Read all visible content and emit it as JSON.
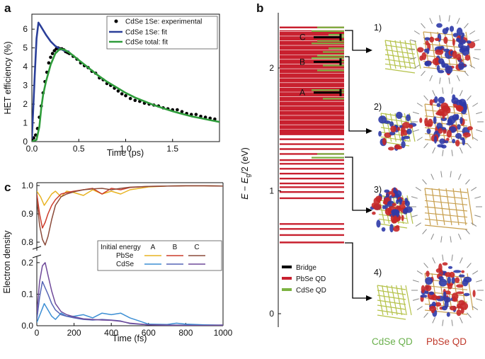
{
  "figure": {
    "panels": [
      {
        "label": "a"
      },
      {
        "label": "b"
      },
      {
        "label": "c"
      }
    ]
  },
  "panel_a": {
    "xlabel": "Time (ps)",
    "ylabel": "HET efficiency (%)",
    "legend": [
      "CdSe 1Se: experimental",
      "CdSe 1Se: fit",
      "CdSe total: fit"
    ]
  },
  "panel_b": {
    "ylabel": "E − Eg/2 (eV)",
    "state_labels": [
      "A",
      "B",
      "C"
    ],
    "legend": [
      "Bridge",
      "PbSe QD",
      "CdSe QD"
    ],
    "structure_labels": [
      "1)",
      "2)",
      "3)",
      "4)"
    ],
    "qd_labels": [
      "CdSe QD",
      "PbSe QD"
    ]
  },
  "panel_c": {
    "xlabel": "Time (fs)",
    "ylabel": "Electron density",
    "legend_title": "Initial energy",
    "legend_cols": [
      "A",
      "B",
      "C"
    ],
    "legend_rows": [
      "PbSe",
      "CdSe"
    ]
  },
  "colors": {
    "blue_fit": "#2b3f99",
    "green_fit": "#2e9c3a",
    "pbse": "#c8202f",
    "cdse_green": "#7cb342",
    "bridge": "#000000",
    "A_pbse": "#e8b322",
    "B_pbse": "#cc3b2a",
    "C_pbse": "#8b4b3a",
    "A_cdse": "#3d8fd4",
    "B_cdse": "#5564b5",
    "C_cdse": "#6f4a9a"
  },
  "chart_data": [
    {
      "type": "line",
      "panel": "a",
      "title": "",
      "xlabel": "Time (ps)",
      "ylabel": "HET efficiency (%)",
      "xlim": [
        0,
        2
      ],
      "ylim": [
        0,
        6.8
      ],
      "xticks": [
        0.0,
        0.5,
        1.0,
        1.5
      ],
      "yticks": [
        0,
        1,
        2,
        3,
        4,
        5,
        6
      ],
      "series": [
        {
          "name": "CdSe 1Se: experimental",
          "style": "scatter",
          "x": [
            0,
            0.02,
            0.04,
            0.06,
            0.08,
            0.1,
            0.12,
            0.14,
            0.16,
            0.18,
            0.2,
            0.22,
            0.24,
            0.26,
            0.28,
            0.3,
            0.32,
            0.34,
            0.36,
            0.38,
            0.4,
            0.44,
            0.48,
            0.52,
            0.56,
            0.6,
            0.64,
            0.68,
            0.72,
            0.76,
            0.8,
            0.84,
            0.88,
            0.92,
            0.96,
            1.0,
            1.05,
            1.1,
            1.15,
            1.2,
            1.25,
            1.3,
            1.35,
            1.4,
            1.45,
            1.5,
            1.55,
            1.6,
            1.65,
            1.7,
            1.75,
            1.8,
            1.85,
            1.9,
            1.95
          ],
          "y": [
            0.12,
            0.2,
            0.35,
            0.7,
            1.3,
            1.9,
            2.6,
            3.2,
            3.7,
            4.2,
            4.5,
            4.7,
            4.85,
            4.95,
            5.0,
            4.95,
            4.95,
            4.9,
            4.8,
            4.75,
            4.7,
            4.55,
            4.4,
            4.2,
            4.05,
            3.95,
            3.75,
            3.65,
            3.4,
            3.3,
            3.1,
            3.0,
            2.85,
            2.7,
            2.55,
            2.45,
            2.3,
            2.2,
            2.15,
            2.05,
            2.0,
            1.95,
            1.9,
            1.8,
            1.75,
            1.7,
            1.7,
            1.6,
            1.5,
            1.45,
            1.45,
            1.35,
            1.3,
            1.25,
            1.2
          ]
        },
        {
          "name": "CdSe 1Se: fit",
          "style": "line",
          "x": [
            0,
            0.01,
            0.03,
            0.05,
            0.07,
            0.09,
            0.12,
            0.15,
            0.2,
            0.25,
            0.3,
            0.35,
            0.4
          ],
          "y": [
            0.15,
            1.2,
            3.5,
            5.5,
            6.35,
            6.2,
            5.95,
            5.7,
            5.35,
            5.1,
            4.95,
            4.85,
            4.8
          ]
        },
        {
          "name": "CdSe total: fit",
          "style": "line",
          "x": [
            0,
            0.05,
            0.08,
            0.1,
            0.12,
            0.15,
            0.2,
            0.25,
            0.3,
            0.35,
            0.4,
            0.5,
            0.6,
            0.7,
            0.8,
            0.9,
            1.0,
            1.1,
            1.2,
            1.3,
            1.4,
            1.5,
            1.6,
            1.7,
            1.8,
            1.9,
            2.0
          ],
          "y": [
            0,
            0.1,
            0.8,
            1.8,
            2.5,
            3.2,
            4.1,
            4.7,
            4.95,
            4.9,
            4.75,
            4.35,
            3.95,
            3.55,
            3.2,
            2.9,
            2.6,
            2.35,
            2.15,
            1.95,
            1.78,
            1.62,
            1.48,
            1.35,
            1.25,
            1.15,
            1.05
          ]
        }
      ]
    },
    {
      "type": "line",
      "panel": "b",
      "title": "",
      "xlabel": "",
      "ylabel": "E − Eg/2 (eV)",
      "ylim": [
        -0.1,
        2.4
      ],
      "yticks": [
        0,
        1,
        2
      ],
      "states_eV": {
        "A": 1.8,
        "B": 2.05,
        "C": 2.25
      },
      "pbse_levels_eV": [
        0.58,
        0.64,
        0.69,
        0.73,
        0.94,
        0.99,
        1.03,
        1.06,
        1.1,
        1.14,
        1.18,
        1.22,
        1.25,
        1.3,
        1.34,
        1.38,
        1.42,
        1.46,
        1.48,
        1.5,
        1.52,
        1.54,
        1.56,
        1.59,
        1.62,
        1.65,
        1.68,
        1.71,
        1.74,
        1.76,
        1.79,
        1.82,
        1.85,
        1.88,
        1.91,
        1.94,
        1.97,
        2.0,
        2.03,
        2.06,
        2.09,
        2.12,
        2.15,
        2.18,
        2.21,
        2.24,
        2.27,
        2.3,
        2.33
      ],
      "cdse_levels_eV": [
        1.27,
        1.3,
        1.75,
        1.8,
        1.82,
        1.98,
        2.02,
        2.05,
        2.08,
        2.1,
        2.13,
        2.16,
        2.2,
        2.22,
        2.25,
        2.27,
        2.3,
        2.33
      ]
    },
    {
      "type": "line",
      "panel": "c",
      "title": "",
      "xlabel": "Time (fs)",
      "ylabel": "Electron density",
      "xlim": [
        0,
        1000
      ],
      "xticks": [
        0,
        200,
        400,
        600,
        800,
        1000
      ],
      "upper_ylim": [
        0.77,
        1.01
      ],
      "upper_yticks": [
        0.8,
        0.9,
        1.0
      ],
      "lower_ylim": [
        0,
        0.22
      ],
      "lower_yticks": [
        0.0,
        0.1,
        0.2
      ],
      "series": [
        {
          "name": "PbSe A",
          "axis": "upper",
          "x": [
            0,
            20,
            40,
            60,
            80,
            100,
            130,
            160,
            200,
            250,
            300,
            350,
            400,
            450,
            500,
            550,
            600,
            700,
            800,
            900,
            1000
          ],
          "y": [
            0.98,
            0.96,
            0.93,
            0.95,
            0.97,
            0.98,
            0.96,
            0.98,
            0.975,
            0.965,
            0.985,
            0.97,
            0.98,
            0.97,
            0.985,
            0.99,
            0.995,
            0.998,
            0.999,
            0.999,
            0.998
          ]
        },
        {
          "name": "PbSe B",
          "axis": "upper",
          "x": [
            0,
            15,
            30,
            45,
            60,
            80,
            100,
            130,
            160,
            200,
            250,
            300,
            350,
            400,
            450,
            500,
            600,
            700,
            800,
            900,
            1000
          ],
          "y": [
            0.97,
            0.9,
            0.85,
            0.87,
            0.9,
            0.93,
            0.95,
            0.97,
            0.975,
            0.98,
            0.985,
            0.99,
            0.97,
            0.99,
            0.985,
            0.993,
            0.997,
            0.998,
            0.999,
            0.999,
            0.998
          ]
        },
        {
          "name": "PbSe C",
          "axis": "upper",
          "x": [
            0,
            15,
            30,
            45,
            60,
            80,
            100,
            130,
            160,
            200,
            250,
            300,
            350,
            400,
            450,
            500,
            600,
            700,
            800,
            900,
            1000
          ],
          "y": [
            0.95,
            0.86,
            0.81,
            0.79,
            0.82,
            0.88,
            0.93,
            0.96,
            0.97,
            0.978,
            0.985,
            0.988,
            0.99,
            0.985,
            0.99,
            0.994,
            0.997,
            0.998,
            0.999,
            0.999,
            0.998
          ]
        },
        {
          "name": "CdSe A",
          "axis": "lower",
          "x": [
            0,
            20,
            40,
            60,
            80,
            100,
            130,
            160,
            200,
            250,
            300,
            350,
            400,
            450,
            500,
            550,
            600,
            700,
            750,
            800,
            900,
            1000
          ],
          "y": [
            0.01,
            0.04,
            0.07,
            0.05,
            0.03,
            0.02,
            0.04,
            0.03,
            0.03,
            0.035,
            0.025,
            0.04,
            0.035,
            0.04,
            0.025,
            0.015,
            0.005,
            0.004,
            0.008,
            0.005,
            0.003,
            0.002
          ]
        },
        {
          "name": "CdSe B",
          "axis": "lower",
          "x": [
            0,
            15,
            30,
            45,
            60,
            80,
            100,
            130,
            160,
            200,
            250,
            300,
            350,
            400,
            450,
            500,
            600,
            700,
            800,
            900,
            1000
          ],
          "y": [
            0.02,
            0.09,
            0.14,
            0.12,
            0.1,
            0.07,
            0.05,
            0.035,
            0.03,
            0.025,
            0.02,
            0.018,
            0.02,
            0.018,
            0.015,
            0.007,
            0.003,
            0.002,
            0.002,
            0.001,
            0.002
          ]
        },
        {
          "name": "CdSe C",
          "axis": "lower",
          "x": [
            0,
            15,
            30,
            45,
            60,
            80,
            100,
            130,
            160,
            200,
            250,
            300,
            350,
            400,
            450,
            500,
            600,
            700,
            800,
            900,
            1000
          ],
          "y": [
            0.04,
            0.14,
            0.19,
            0.2,
            0.16,
            0.11,
            0.07,
            0.045,
            0.035,
            0.028,
            0.022,
            0.02,
            0.018,
            0.017,
            0.014,
            0.008,
            0.003,
            0.002,
            0.001,
            0.001,
            0.002
          ]
        }
      ]
    }
  ]
}
